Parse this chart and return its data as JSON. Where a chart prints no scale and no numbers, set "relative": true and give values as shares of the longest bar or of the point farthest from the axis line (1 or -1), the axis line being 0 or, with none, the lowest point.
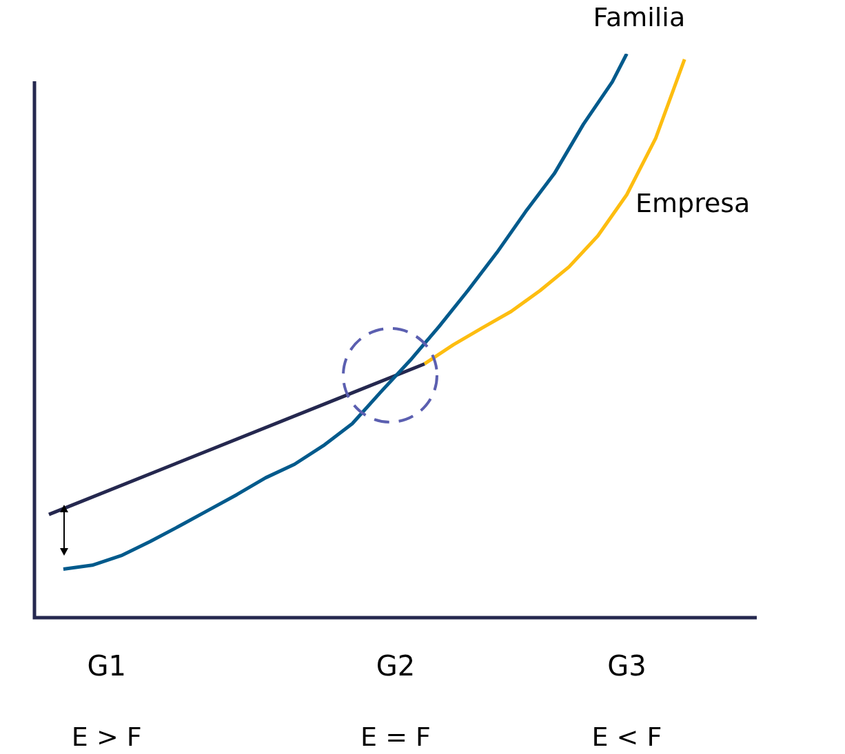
{
  "chart_data": {
    "type": "line",
    "relative": true,
    "categories": [
      null,
      null,
      null,
      null,
      null,
      "G1",
      null,
      null,
      null,
      null,
      null,
      null,
      null,
      null,
      null,
      null,
      null,
      null,
      null,
      null,
      null,
      null,
      null,
      null,
      null,
      "G2",
      null,
      null,
      null,
      null,
      null,
      null,
      null,
      null,
      null,
      null,
      null,
      null,
      null,
      null,
      null,
      "G3",
      null,
      null,
      null,
      null,
      null,
      null,
      null,
      null,
      null
    ],
    "series": [
      {
        "name": "Familia",
        "color": "#005a8c",
        "values": [
          null,
          null,
          0.086,
          null,
          0.093,
          null,
          0.11,
          null,
          0.135,
          null,
          0.162,
          null,
          0.19,
          null,
          0.218,
          null,
          0.248,
          null,
          0.272,
          null,
          0.305,
          null,
          0.344,
          null,
          0.401,
          null,
          0.456,
          null,
          0.516,
          null,
          0.58,
          null,
          0.647,
          null,
          0.72,
          null,
          0.788,
          null,
          0.875,
          null,
          0.95,
          1,
          null,
          null,
          null,
          null,
          null,
          null,
          null,
          null,
          null
        ]
      },
      {
        "color": "#25284f",
        "values": [
          null,
          0.183,
          null,
          null,
          null,
          null,
          null,
          null,
          null,
          null,
          null,
          null,
          null,
          null,
          null,
          null,
          null,
          null,
          null,
          null,
          null,
          null,
          null,
          null,
          null,
          null,
          null,
          0.45,
          null,
          null,
          null,
          null,
          null,
          null,
          null,
          null,
          null,
          null,
          null,
          null,
          null,
          null,
          null,
          null,
          null,
          null,
          null,
          null,
          null,
          null,
          null
        ]
      },
      {
        "name": "Empresa",
        "color": "#fdbd10",
        "values": [
          null,
          null,
          null,
          null,
          null,
          null,
          null,
          null,
          null,
          null,
          null,
          null,
          null,
          null,
          null,
          null,
          null,
          null,
          null,
          null,
          null,
          null,
          null,
          null,
          null,
          null,
          null,
          0.45,
          null,
          0.484,
          null,
          0.514,
          null,
          0.543,
          null,
          0.58,
          null,
          0.622,
          null,
          0.677,
          null,
          0.75,
          null,
          0.85,
          null,
          0.99,
          null,
          null,
          null,
          null,
          null
        ]
      }
    ],
    "annotations": [
      "E > F",
      "E = F",
      "E < F"
    ],
    "grid": false,
    "legend": false,
    "marker": "none",
    "line_style": "solid"
  }
}
